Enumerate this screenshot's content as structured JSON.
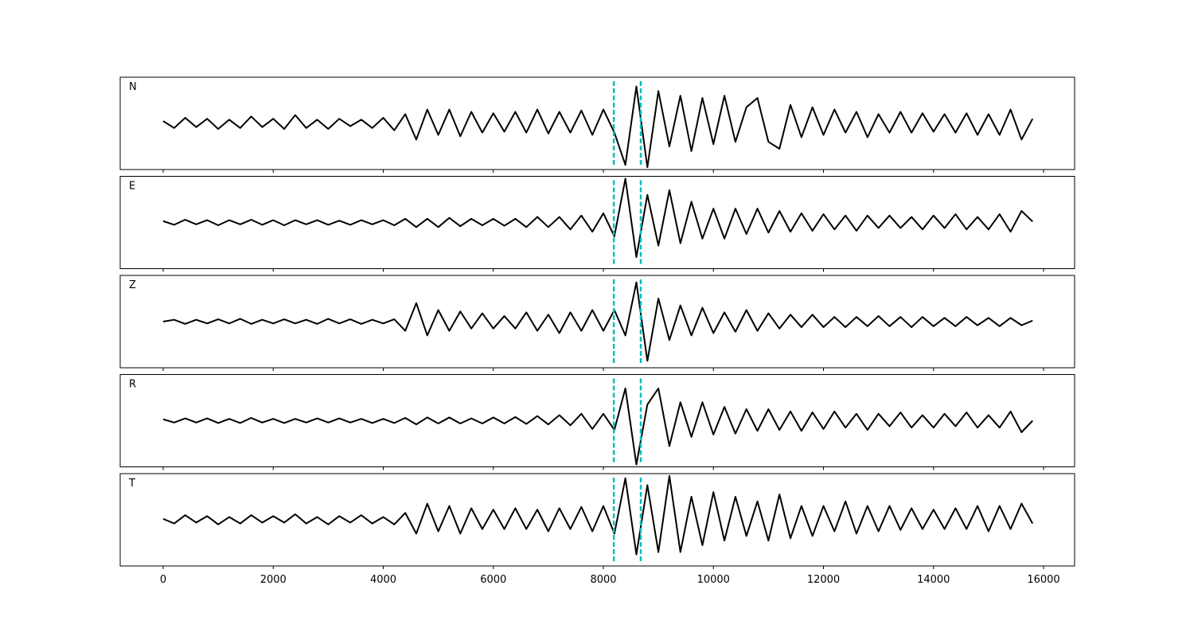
{
  "chart_data": {
    "type": "line",
    "x": [
      0,
      200,
      400,
      600,
      800,
      1000,
      1200,
      1400,
      1600,
      1800,
      2000,
      2200,
      2400,
      2600,
      2800,
      3000,
      3200,
      3400,
      3600,
      3800,
      4000,
      4200,
      4400,
      4600,
      4800,
      5000,
      5200,
      5400,
      5600,
      5800,
      6000,
      6200,
      6400,
      6600,
      6800,
      7000,
      7200,
      7400,
      7600,
      7800,
      8000,
      8200,
      8400,
      8600,
      8800,
      9000,
      9200,
      9400,
      9600,
      9800,
      10000,
      10200,
      10400,
      10600,
      10800,
      11000,
      11200,
      11400,
      11600,
      11800,
      12000,
      12200,
      12400,
      12600,
      12800,
      13000,
      13200,
      13400,
      13600,
      13800,
      14000,
      14200,
      14400,
      14600,
      14800,
      15000,
      15200,
      15400,
      15600,
      15800
    ],
    "xlim": [
      -781,
      16564
    ],
    "xticks": [
      0,
      2000,
      4000,
      6000,
      8000,
      10000,
      12000,
      14000,
      16000
    ],
    "ylim": [
      -1,
      1
    ],
    "series": [
      {
        "name": "N",
        "color": "#000000",
        "values": [
          0.05,
          -0.1,
          0.12,
          -0.08,
          0.1,
          -0.12,
          0.08,
          -0.1,
          0.15,
          -0.08,
          0.1,
          -0.12,
          0.18,
          -0.1,
          0.08,
          -0.12,
          0.1,
          -0.06,
          0.08,
          -0.1,
          0.12,
          -0.15,
          0.2,
          -0.35,
          0.3,
          -0.25,
          0.3,
          -0.28,
          0.25,
          -0.2,
          0.22,
          -0.18,
          0.25,
          -0.2,
          0.3,
          -0.22,
          0.25,
          -0.2,
          0.28,
          -0.25,
          0.3,
          -0.2,
          -0.9,
          0.8,
          -0.95,
          0.7,
          -0.5,
          0.6,
          -0.6,
          0.55,
          -0.45,
          0.6,
          -0.4,
          0.35,
          0.55,
          -0.4,
          -0.55,
          0.4,
          -0.3,
          0.35,
          -0.25,
          0.3,
          -0.2,
          0.25,
          -0.3,
          0.2,
          -0.2,
          0.25,
          -0.2,
          0.22,
          -0.18,
          0.2,
          -0.2,
          0.22,
          -0.25,
          0.2,
          -0.25,
          0.3,
          -0.35,
          0.1
        ]
      },
      {
        "name": "E",
        "color": "#000000",
        "values": [
          0.03,
          -0.05,
          0.06,
          -0.04,
          0.05,
          -0.06,
          0.05,
          -0.04,
          0.06,
          -0.05,
          0.05,
          -0.06,
          0.05,
          -0.04,
          0.05,
          -0.05,
          0.04,
          -0.05,
          0.05,
          -0.04,
          0.05,
          -0.06,
          0.08,
          -0.1,
          0.08,
          -0.1,
          0.1,
          -0.08,
          0.08,
          -0.06,
          0.08,
          -0.07,
          0.08,
          -0.1,
          0.12,
          -0.1,
          0.12,
          -0.15,
          0.15,
          -0.2,
          0.2,
          -0.3,
          0.95,
          -0.75,
          0.6,
          -0.5,
          0.7,
          -0.45,
          0.45,
          -0.35,
          0.3,
          -0.35,
          0.3,
          -0.25,
          0.3,
          -0.22,
          0.25,
          -0.2,
          0.2,
          -0.18,
          0.18,
          -0.15,
          0.15,
          -0.18,
          0.15,
          -0.12,
          0.15,
          -0.12,
          0.12,
          -0.15,
          0.15,
          -0.12,
          0.18,
          -0.15,
          0.12,
          -0.15,
          0.18,
          -0.2,
          0.25,
          0.02
        ]
      },
      {
        "name": "Z",
        "color": "#000000",
        "values": [
          0.0,
          0.04,
          -0.05,
          0.04,
          -0.04,
          0.05,
          -0.04,
          0.06,
          -0.05,
          0.04,
          -0.04,
          0.05,
          -0.04,
          0.04,
          -0.05,
          0.06,
          -0.04,
          0.05,
          -0.05,
          0.04,
          -0.04,
          0.05,
          -0.2,
          0.4,
          -0.3,
          0.25,
          -0.2,
          0.22,
          -0.15,
          0.18,
          -0.15,
          0.12,
          -0.15,
          0.2,
          -0.2,
          0.15,
          -0.25,
          0.2,
          -0.2,
          0.25,
          -0.2,
          0.25,
          -0.3,
          0.85,
          -0.85,
          0.5,
          -0.4,
          0.35,
          -0.3,
          0.3,
          -0.25,
          0.2,
          -0.22,
          0.25,
          -0.2,
          0.18,
          -0.15,
          0.15,
          -0.12,
          0.15,
          -0.12,
          0.1,
          -0.12,
          0.1,
          -0.1,
          0.12,
          -0.1,
          0.1,
          -0.12,
          0.1,
          -0.1,
          0.08,
          -0.1,
          0.1,
          -0.08,
          0.08,
          -0.1,
          0.08,
          -0.08,
          0.02
        ]
      },
      {
        "name": "R",
        "color": "#000000",
        "values": [
          0.03,
          -0.04,
          0.05,
          -0.04,
          0.05,
          -0.05,
          0.04,
          -0.05,
          0.06,
          -0.04,
          0.04,
          -0.05,
          0.04,
          -0.04,
          0.05,
          -0.04,
          0.05,
          -0.04,
          0.04,
          -0.05,
          0.04,
          -0.05,
          0.06,
          -0.08,
          0.07,
          -0.06,
          0.07,
          -0.06,
          0.05,
          -0.06,
          0.07,
          -0.06,
          0.08,
          -0.07,
          0.1,
          -0.08,
          0.12,
          -0.1,
          0.15,
          -0.18,
          0.15,
          -0.2,
          0.7,
          -0.95,
          0.35,
          0.7,
          -0.55,
          0.4,
          -0.35,
          0.4,
          -0.3,
          0.3,
          -0.28,
          0.25,
          -0.22,
          0.25,
          -0.2,
          0.2,
          -0.22,
          0.18,
          -0.18,
          0.2,
          -0.15,
          0.15,
          -0.2,
          0.15,
          -0.12,
          0.18,
          -0.15,
          0.12,
          -0.15,
          0.15,
          -0.12,
          0.18,
          -0.15,
          0.12,
          -0.15,
          0.2,
          -0.25,
          0.0
        ]
      },
      {
        "name": "T",
        "color": "#000000",
        "values": [
          0.02,
          -0.08,
          0.1,
          -0.06,
          0.08,
          -0.1,
          0.06,
          -0.08,
          0.1,
          -0.06,
          0.08,
          -0.06,
          0.12,
          -0.08,
          0.06,
          -0.1,
          0.08,
          -0.06,
          0.1,
          -0.08,
          0.06,
          -0.1,
          0.15,
          -0.3,
          0.35,
          -0.25,
          0.3,
          -0.3,
          0.25,
          -0.2,
          0.22,
          -0.2,
          0.25,
          -0.2,
          0.22,
          -0.25,
          0.25,
          -0.2,
          0.28,
          -0.25,
          0.3,
          -0.3,
          0.9,
          -0.75,
          0.75,
          -0.7,
          0.95,
          -0.7,
          0.5,
          -0.55,
          0.6,
          -0.45,
          0.5,
          -0.35,
          0.4,
          -0.45,
          0.55,
          -0.4,
          0.3,
          -0.35,
          0.3,
          -0.25,
          0.4,
          -0.3,
          0.3,
          -0.25,
          0.3,
          -0.22,
          0.25,
          -0.2,
          0.22,
          -0.2,
          0.25,
          -0.2,
          0.3,
          -0.25,
          0.3,
          -0.2,
          0.35,
          -0.08
        ]
      }
    ],
    "vlines": {
      "values": [
        8190,
        8680
      ],
      "color": "#00bfbf"
    }
  }
}
